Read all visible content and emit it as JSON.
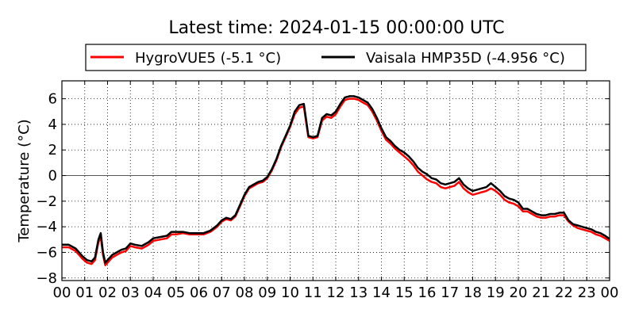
{
  "chart_data": {
    "type": "line",
    "title": "Latest time: 2024-01-15 00:00:00 UTC",
    "xlabel": "",
    "ylabel": "Temperature (°C)",
    "xlim": [
      0,
      24
    ],
    "ylim": [
      -8.2,
      7.4
    ],
    "xticks": [
      0,
      1,
      2,
      3,
      4,
      5,
      6,
      7,
      8,
      9,
      10,
      11,
      12,
      13,
      14,
      15,
      16,
      17,
      18,
      19,
      20,
      21,
      22,
      23,
      24
    ],
    "xtick_labels": [
      "00",
      "01",
      "02",
      "03",
      "04",
      "05",
      "06",
      "07",
      "08",
      "09",
      "10",
      "11",
      "12",
      "13",
      "14",
      "15",
      "16",
      "17",
      "18",
      "19",
      "20",
      "21",
      "22",
      "23",
      "00"
    ],
    "yticks": [
      -8,
      -6,
      -4,
      -2,
      0,
      2,
      4,
      6
    ],
    "ytick_labels": [
      "−8",
      "−6",
      "−4",
      "−2",
      "0",
      "2",
      "4",
      "6"
    ],
    "grid": true,
    "zero_line": true,
    "legend_position": "top",
    "series": [
      {
        "name": "HygroVUE5 (-5.1 °C)",
        "color": "#ff0000",
        "points": [
          [
            0,
            -5.6
          ],
          [
            0.3,
            -5.6
          ],
          [
            0.6,
            -5.9
          ],
          [
            0.9,
            -6.5
          ],
          [
            1.1,
            -6.8
          ],
          [
            1.3,
            -6.9
          ],
          [
            1.45,
            -6.6
          ],
          [
            1.6,
            -5.2
          ],
          [
            1.7,
            -4.8
          ],
          [
            1.8,
            -6.2
          ],
          [
            1.9,
            -7.0
          ],
          [
            2.0,
            -6.8
          ],
          [
            2.2,
            -6.4
          ],
          [
            2.4,
            -6.2
          ],
          [
            2.6,
            -6.0
          ],
          [
            2.8,
            -5.9
          ],
          [
            3.0,
            -5.5
          ],
          [
            3.2,
            -5.6
          ],
          [
            3.5,
            -5.7
          ],
          [
            3.8,
            -5.4
          ],
          [
            4.0,
            -5.1
          ],
          [
            4.3,
            -5.0
          ],
          [
            4.6,
            -4.9
          ],
          [
            4.8,
            -4.6
          ],
          [
            5.0,
            -4.6
          ],
          [
            5.3,
            -4.5
          ],
          [
            5.6,
            -4.6
          ],
          [
            5.9,
            -4.6
          ],
          [
            6.2,
            -4.6
          ],
          [
            6.5,
            -4.4
          ],
          [
            6.8,
            -4.0
          ],
          [
            7.0,
            -3.6
          ],
          [
            7.2,
            -3.4
          ],
          [
            7.4,
            -3.5
          ],
          [
            7.6,
            -3.2
          ],
          [
            7.8,
            -2.4
          ],
          [
            8.0,
            -1.6
          ],
          [
            8.2,
            -1.0
          ],
          [
            8.4,
            -0.8
          ],
          [
            8.6,
            -0.6
          ],
          [
            8.8,
            -0.5
          ],
          [
            9.0,
            -0.2
          ],
          [
            9.2,
            0.4
          ],
          [
            9.4,
            1.2
          ],
          [
            9.6,
            2.2
          ],
          [
            9.8,
            3.0
          ],
          [
            10.0,
            3.8
          ],
          [
            10.2,
            4.8
          ],
          [
            10.4,
            5.3
          ],
          [
            10.6,
            5.4
          ],
          [
            10.7,
            4.2
          ],
          [
            10.8,
            3.0
          ],
          [
            11.0,
            2.9
          ],
          [
            11.2,
            3.0
          ],
          [
            11.4,
            4.3
          ],
          [
            11.6,
            4.6
          ],
          [
            11.8,
            4.5
          ],
          [
            12.0,
            4.8
          ],
          [
            12.2,
            5.4
          ],
          [
            12.4,
            5.9
          ],
          [
            12.6,
            6.0
          ],
          [
            12.8,
            6.0
          ],
          [
            13.0,
            5.9
          ],
          [
            13.2,
            5.7
          ],
          [
            13.4,
            5.5
          ],
          [
            13.6,
            5.0
          ],
          [
            13.8,
            4.3
          ],
          [
            14.0,
            3.5
          ],
          [
            14.2,
            2.8
          ],
          [
            14.4,
            2.5
          ],
          [
            14.6,
            2.1
          ],
          [
            14.8,
            1.8
          ],
          [
            15.0,
            1.5
          ],
          [
            15.2,
            1.2
          ],
          [
            15.4,
            0.8
          ],
          [
            15.6,
            0.3
          ],
          [
            15.8,
            0.0
          ],
          [
            16.0,
            -0.3
          ],
          [
            16.2,
            -0.5
          ],
          [
            16.4,
            -0.6
          ],
          [
            16.6,
            -0.9
          ],
          [
            16.8,
            -1.0
          ],
          [
            17.0,
            -0.9
          ],
          [
            17.2,
            -0.8
          ],
          [
            17.4,
            -0.5
          ],
          [
            17.6,
            -1.0
          ],
          [
            17.8,
            -1.3
          ],
          [
            18.0,
            -1.5
          ],
          [
            18.2,
            -1.4
          ],
          [
            18.4,
            -1.3
          ],
          [
            18.6,
            -1.2
          ],
          [
            18.8,
            -1.0
          ],
          [
            19.0,
            -1.2
          ],
          [
            19.2,
            -1.5
          ],
          [
            19.4,
            -1.9
          ],
          [
            19.6,
            -2.1
          ],
          [
            19.8,
            -2.2
          ],
          [
            20.0,
            -2.4
          ],
          [
            20.2,
            -2.8
          ],
          [
            20.4,
            -2.8
          ],
          [
            20.6,
            -3.0
          ],
          [
            20.8,
            -3.2
          ],
          [
            21.0,
            -3.3
          ],
          [
            21.2,
            -3.3
          ],
          [
            21.4,
            -3.2
          ],
          [
            21.6,
            -3.2
          ],
          [
            21.8,
            -3.1
          ],
          [
            22.0,
            -3.1
          ],
          [
            22.2,
            -3.6
          ],
          [
            22.4,
            -3.9
          ],
          [
            22.6,
            -4.1
          ],
          [
            22.8,
            -4.2
          ],
          [
            23.0,
            -4.3
          ],
          [
            23.2,
            -4.4
          ],
          [
            23.4,
            -4.6
          ],
          [
            23.6,
            -4.7
          ],
          [
            23.8,
            -4.9
          ],
          [
            24.0,
            -5.1
          ]
        ]
      },
      {
        "name": "Vaisala HMP35D (-4.956 °C)",
        "color": "#000000",
        "points": [
          [
            0,
            -5.4
          ],
          [
            0.3,
            -5.4
          ],
          [
            0.6,
            -5.7
          ],
          [
            0.9,
            -6.3
          ],
          [
            1.1,
            -6.6
          ],
          [
            1.3,
            -6.7
          ],
          [
            1.45,
            -6.4
          ],
          [
            1.6,
            -5.0
          ],
          [
            1.7,
            -4.5
          ],
          [
            1.8,
            -6.0
          ],
          [
            1.9,
            -6.8
          ],
          [
            2.0,
            -6.6
          ],
          [
            2.2,
            -6.2
          ],
          [
            2.4,
            -6.0
          ],
          [
            2.6,
            -5.8
          ],
          [
            2.8,
            -5.7
          ],
          [
            3.0,
            -5.3
          ],
          [
            3.2,
            -5.4
          ],
          [
            3.5,
            -5.5
          ],
          [
            3.8,
            -5.2
          ],
          [
            4.0,
            -4.9
          ],
          [
            4.3,
            -4.8
          ],
          [
            4.6,
            -4.7
          ],
          [
            4.8,
            -4.4
          ],
          [
            5.0,
            -4.4
          ],
          [
            5.3,
            -4.4
          ],
          [
            5.6,
            -4.5
          ],
          [
            5.9,
            -4.5
          ],
          [
            6.2,
            -4.5
          ],
          [
            6.5,
            -4.3
          ],
          [
            6.8,
            -3.9
          ],
          [
            7.0,
            -3.5
          ],
          [
            7.2,
            -3.3
          ],
          [
            7.4,
            -3.4
          ],
          [
            7.6,
            -3.1
          ],
          [
            7.8,
            -2.3
          ],
          [
            8.0,
            -1.5
          ],
          [
            8.2,
            -0.9
          ],
          [
            8.4,
            -0.7
          ],
          [
            8.6,
            -0.5
          ],
          [
            8.8,
            -0.4
          ],
          [
            9.0,
            -0.1
          ],
          [
            9.2,
            0.5
          ],
          [
            9.4,
            1.3
          ],
          [
            9.6,
            2.3
          ],
          [
            9.8,
            3.1
          ],
          [
            10.0,
            3.9
          ],
          [
            10.2,
            5.0
          ],
          [
            10.4,
            5.5
          ],
          [
            10.6,
            5.6
          ],
          [
            10.7,
            4.4
          ],
          [
            10.8,
            3.1
          ],
          [
            11.0,
            3.0
          ],
          [
            11.2,
            3.1
          ],
          [
            11.4,
            4.5
          ],
          [
            11.6,
            4.8
          ],
          [
            11.8,
            4.7
          ],
          [
            12.0,
            5.0
          ],
          [
            12.2,
            5.6
          ],
          [
            12.4,
            6.1
          ],
          [
            12.6,
            6.2
          ],
          [
            12.8,
            6.2
          ],
          [
            13.0,
            6.1
          ],
          [
            13.2,
            5.9
          ],
          [
            13.4,
            5.7
          ],
          [
            13.6,
            5.2
          ],
          [
            13.8,
            4.5
          ],
          [
            14.0,
            3.7
          ],
          [
            14.2,
            3.0
          ],
          [
            14.4,
            2.7
          ],
          [
            14.6,
            2.3
          ],
          [
            14.8,
            2.0
          ],
          [
            15.0,
            1.8
          ],
          [
            15.2,
            1.5
          ],
          [
            15.4,
            1.1
          ],
          [
            15.6,
            0.6
          ],
          [
            15.8,
            0.3
          ],
          [
            16.0,
            0.1
          ],
          [
            16.2,
            -0.2
          ],
          [
            16.4,
            -0.3
          ],
          [
            16.6,
            -0.6
          ],
          [
            16.8,
            -0.7
          ],
          [
            17.0,
            -0.6
          ],
          [
            17.2,
            -0.5
          ],
          [
            17.4,
            -0.2
          ],
          [
            17.6,
            -0.7
          ],
          [
            17.8,
            -1.0
          ],
          [
            18.0,
            -1.2
          ],
          [
            18.2,
            -1.1
          ],
          [
            18.4,
            -1.0
          ],
          [
            18.6,
            -0.9
          ],
          [
            18.8,
            -0.6
          ],
          [
            19.0,
            -0.9
          ],
          [
            19.2,
            -1.2
          ],
          [
            19.4,
            -1.6
          ],
          [
            19.6,
            -1.8
          ],
          [
            19.8,
            -1.9
          ],
          [
            20.0,
            -2.1
          ],
          [
            20.2,
            -2.6
          ],
          [
            20.4,
            -2.6
          ],
          [
            20.6,
            -2.8
          ],
          [
            20.8,
            -3.0
          ],
          [
            21.0,
            -3.1
          ],
          [
            21.2,
            -3.1
          ],
          [
            21.4,
            -3.0
          ],
          [
            21.6,
            -3.0
          ],
          [
            21.8,
            -2.9
          ],
          [
            22.0,
            -2.9
          ],
          [
            22.2,
            -3.5
          ],
          [
            22.4,
            -3.8
          ],
          [
            22.6,
            -3.9
          ],
          [
            22.8,
            -4.0
          ],
          [
            23.0,
            -4.1
          ],
          [
            23.2,
            -4.2
          ],
          [
            23.4,
            -4.4
          ],
          [
            23.6,
            -4.5
          ],
          [
            23.8,
            -4.7
          ],
          [
            24.0,
            -4.95
          ]
        ]
      }
    ]
  }
}
